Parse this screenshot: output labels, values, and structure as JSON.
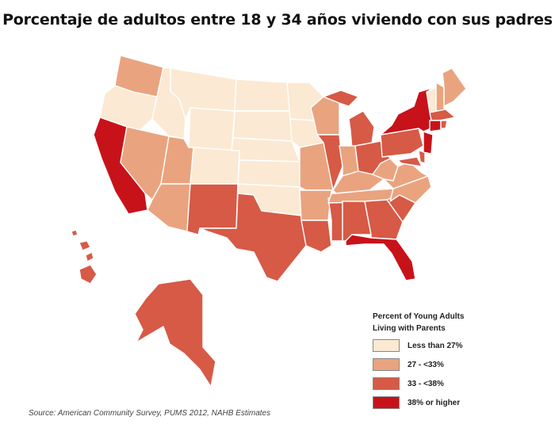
{
  "title": "Porcentaje de adultos entre 18 y 34 años viviendo con sus padres",
  "legend": {
    "title_line1": "Percent of Young Adults",
    "title_line2": "Living with Parents",
    "items": [
      {
        "label": "Less than 27%",
        "color": "#fbe9d3"
      },
      {
        "label": "27 - <33%",
        "color": "#e9a47f"
      },
      {
        "label": "33 - <38%",
        "color": "#d65a46"
      },
      {
        "label": "38% or higher",
        "color": "#c81219"
      }
    ]
  },
  "source": "Source: American Community Survey, PUMS 2012, NAHB Estimates",
  "state_categories": {
    "WA": 1,
    "OR": 0,
    "CA": 3,
    "NV": 1,
    "ID": 0,
    "MT": 0,
    "WY": 0,
    "UT": 1,
    "AZ": 1,
    "CO": 0,
    "NM": 2,
    "ND": 0,
    "SD": 0,
    "NE": 0,
    "KS": 0,
    "OK": 0,
    "TX": 2,
    "MN": 0,
    "IA": 0,
    "MO": 1,
    "AR": 1,
    "LA": 2,
    "WI": 1,
    "IL": 2,
    "MS": 2,
    "MI": 2,
    "IN": 1,
    "KY": 1,
    "TN": 1,
    "AL": 2,
    "OH": 2,
    "WV": 1,
    "GA": 2,
    "FL": 3,
    "SC": 2,
    "NC": 1,
    "VA": 1,
    "PA": 2,
    "NY": 3,
    "NJ": 3,
    "VT": 0,
    "NH": 1,
    "ME": 1,
    "MA": 2,
    "CT": 3,
    "RI": 2,
    "MD": 2,
    "DE": 2,
    "AK": 2,
    "HI": 2
  }
}
